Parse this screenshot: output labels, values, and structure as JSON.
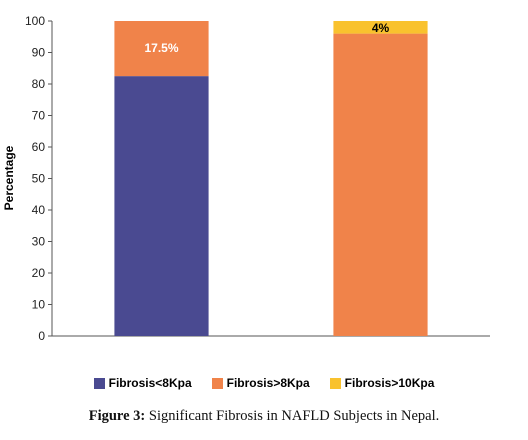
{
  "chart_data": {
    "type": "bar",
    "stacked": true,
    "categories": [
      "",
      ""
    ],
    "series": [
      {
        "name": "Fibrosis<8Kpa",
        "color": "#4a4a91",
        "values": [
          82.5,
          0
        ]
      },
      {
        "name": "Fibrosis>8Kpa",
        "color": "#f0834a",
        "values": [
          17.5,
          96
        ]
      },
      {
        "name": "Fibrosis>10Kpa",
        "color": "#f9c22e",
        "values": [
          0,
          4
        ]
      }
    ],
    "data_labels": [
      {
        "bar": 0,
        "series": 1,
        "text": "17.5%",
        "color": "#ffffff"
      },
      {
        "bar": 1,
        "series": 2,
        "text": "4%",
        "color": "#000000"
      }
    ],
    "ylabel": "Percentage",
    "xlabel": "",
    "ylim": [
      0,
      100
    ],
    "yticks": [
      0,
      10,
      20,
      30,
      40,
      50,
      60,
      70,
      80,
      90,
      100
    ],
    "grid": false,
    "legend_position": "bottom"
  },
  "caption": {
    "label": "Figure 3:",
    "text": " Significant Fibrosis in NAFLD Subjects in Nepal."
  }
}
